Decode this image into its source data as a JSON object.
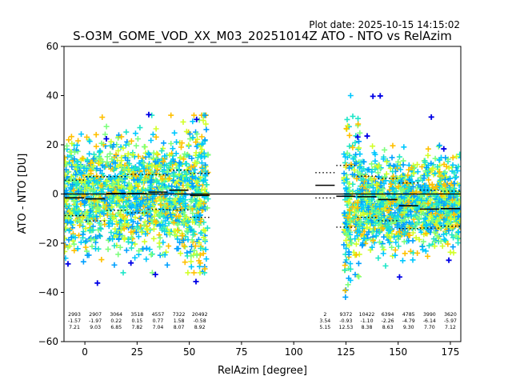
{
  "chart_data": {
    "type": "scatter",
    "title": "S-O3M_GOME_VOD_XX_M03_20251014Z ATO - NTO vs RelAzim",
    "plot_date": "Plot date: 2025-10-15 14:15:02",
    "xlabel": "RelAzim [degree]",
    "ylabel": "ATO - NTO [DU]",
    "xlim": [
      -10,
      180
    ],
    "ylim": [
      -60,
      60
    ],
    "xticks": [
      0,
      25,
      50,
      75,
      100,
      125,
      150,
      175
    ],
    "yticks": [
      -60,
      -40,
      -20,
      0,
      20,
      40,
      60
    ],
    "xtick_labels": [
      "0",
      "25",
      "50",
      "75",
      "100",
      "125",
      "150",
      "175"
    ],
    "ytick_labels": [
      "−60",
      "−40",
      "−20",
      "0",
      "20",
      "40",
      "60"
    ],
    "bin_edges": [
      -10,
      0,
      10,
      20,
      30,
      40,
      50,
      60,
      110,
      120,
      130,
      140,
      150,
      160,
      170,
      180
    ],
    "bins": [
      {
        "center": -5,
        "count": "2993",
        "mean": "-1.57",
        "std": "7.21",
        "mean_val": -1.57,
        "std_val": 7.21
      },
      {
        "center": 5,
        "count": "2907",
        "mean": "-1.97",
        "std": "9.03",
        "mean_val": -1.97,
        "std_val": 9.03
      },
      {
        "center": 15,
        "count": "3064",
        "mean": "0.22",
        "std": "6.85",
        "mean_val": 0.22,
        "std_val": 6.85
      },
      {
        "center": 25,
        "count": "3518",
        "mean": "0.15",
        "std": "7.82",
        "mean_val": 0.15,
        "std_val": 7.82
      },
      {
        "center": 35,
        "count": "4557",
        "mean": "0.77",
        "std": "7.04",
        "mean_val": 0.77,
        "std_val": 7.04
      },
      {
        "center": 45,
        "count": "7322",
        "mean": "1.58",
        "std": "8.07",
        "mean_val": 1.58,
        "std_val": 8.07
      },
      {
        "center": 55,
        "count": "20492",
        "mean": "-0.58",
        "std": "8.92",
        "mean_val": -0.58,
        "std_val": 8.92
      },
      {
        "center": 115,
        "count": "2",
        "mean": "3.54",
        "std": "5.15",
        "mean_val": 3.54,
        "std_val": 5.15
      },
      {
        "center": 125,
        "count": "9372",
        "mean": "-0.93",
        "std": "12.53",
        "mean_val": -0.93,
        "std_val": 12.53
      },
      {
        "center": 135,
        "count": "10422",
        "mean": "-1.10",
        "std": "8.38",
        "mean_val": -1.1,
        "std_val": 8.38
      },
      {
        "center": 145,
        "count": "6394",
        "mean": "-2.26",
        "std": "8.63",
        "mean_val": -2.26,
        "std_val": 8.63
      },
      {
        "center": 155,
        "count": "4785",
        "mean": "-4.79",
        "std": "9.30",
        "mean_val": -4.79,
        "std_val": 9.3
      },
      {
        "center": 165,
        "count": "3990",
        "mean": "-6.14",
        "std": "7.70",
        "mean_val": -6.14,
        "std_val": 7.7
      },
      {
        "center": 175,
        "count": "3620",
        "mean": "-5.97",
        "std": "7.12",
        "mean_val": -5.97,
        "std_val": 7.12
      }
    ],
    "scatter_clusters": [
      {
        "xmin": -10,
        "xmax": 59,
        "ymin": -32,
        "ymax": 32,
        "colors": [
          "#00c8ff",
          "#1ee6c8",
          "#7dff7d",
          "#ffc000",
          "#d2ff28",
          "#00a0ff"
        ]
      },
      {
        "xmin": 124,
        "xmax": 180,
        "ymin": -42,
        "ymax": 40,
        "colors": [
          "#00c8ff",
          "#1ee6c8",
          "#7dff7d",
          "#ffc000",
          "#d2ff28",
          "#00a0ff"
        ]
      }
    ],
    "outlier_color": "#0000e6",
    "mean_color": "#000000",
    "zero_line": 0
  }
}
